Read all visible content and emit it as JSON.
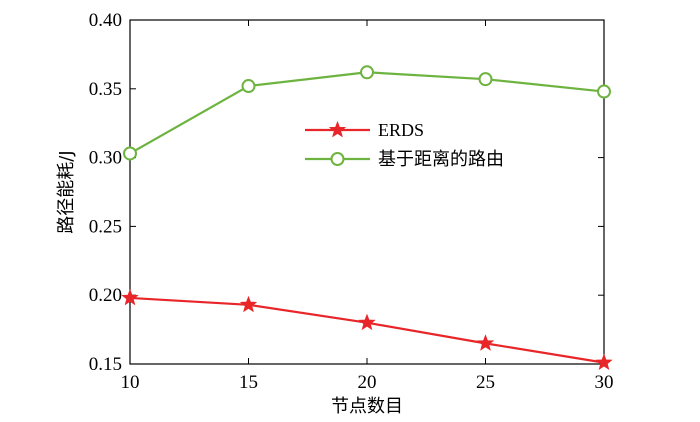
{
  "chart_data": {
    "type": "line",
    "x": [
      10,
      15,
      20,
      25,
      30
    ],
    "xlabel": "节点数目",
    "ylabel": "路径能耗/J",
    "xlim": [
      10,
      30
    ],
    "ylim": [
      0.15,
      0.4
    ],
    "xticks": [
      10,
      15,
      20,
      25,
      30
    ],
    "yticks": [
      0.15,
      0.2,
      0.25,
      0.3,
      0.35,
      0.4
    ],
    "ytick_labels": [
      "0.15",
      "0.20",
      "0.25",
      "0.30",
      "0.35",
      "0.40"
    ],
    "grid": false,
    "legend_position": "center-right",
    "series": [
      {
        "name": "ERDS",
        "values": [
          0.198,
          0.193,
          0.18,
          0.165,
          0.151
        ],
        "color": "#e8262a",
        "marker": "star"
      },
      {
        "name": "基于距离的路由",
        "values": [
          0.303,
          0.352,
          0.362,
          0.357,
          0.348
        ],
        "color": "#6db33f",
        "marker": "circle"
      }
    ]
  }
}
